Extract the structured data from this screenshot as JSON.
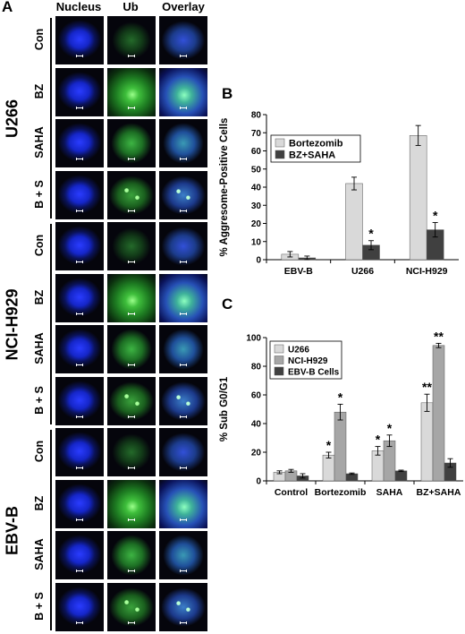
{
  "panel_a": {
    "letter": "A",
    "columns": [
      "Nucleus",
      "Ub",
      "Overlay"
    ],
    "groups": [
      {
        "name": "U266",
        "rows": [
          "Con",
          "BZ",
          "SAHA",
          "B + S"
        ]
      },
      {
        "name": "NCI-H929",
        "rows": [
          "Con",
          "BZ",
          "SAHA",
          "B + S"
        ]
      },
      {
        "name": "EBV-B",
        "rows": [
          "Con",
          "BZ",
          "SAHA",
          "B + S"
        ]
      }
    ]
  },
  "panel_b": {
    "letter": "B"
  },
  "panel_c": {
    "letter": "C"
  },
  "chart_data": [
    {
      "type": "bar",
      "categories": [
        "EBV-B",
        "U266",
        "NCI-H929"
      ],
      "ylabel": "% Aggresome-Positive Cells",
      "xlabel": "",
      "ylim": [
        0,
        80
      ],
      "yticks": [
        0,
        10,
        20,
        30,
        40,
        50,
        60,
        70,
        80
      ],
      "grid": false,
      "legend": "top-left",
      "series": [
        {
          "name": "Bortezomib",
          "values": [
            3,
            42,
            68.5
          ],
          "errors": [
            1.5,
            3.5,
            5.5
          ],
          "color": "#d9d9d9"
        },
        {
          "name": "BZ+SAHA",
          "values": [
            1,
            8,
            16.5
          ],
          "errors": [
            1,
            2.5,
            4
          ],
          "color": "#404040"
        }
      ],
      "annotations": [
        {
          "category": "U266",
          "series": "BZ+SAHA",
          "text": "*"
        },
        {
          "category": "NCI-H929",
          "series": "BZ+SAHA",
          "text": "*"
        }
      ]
    },
    {
      "type": "bar",
      "categories": [
        "Control",
        "Bortezomib",
        "SAHA",
        "BZ+SAHA"
      ],
      "ylabel": "% Sub G0/G1",
      "xlabel": "",
      "ylim": [
        0,
        100
      ],
      "yticks": [
        0,
        20,
        40,
        60,
        80,
        100
      ],
      "grid": false,
      "legend": "top-left",
      "series": [
        {
          "name": "U266",
          "values": [
            6,
            18,
            21,
            54.5
          ],
          "errors": [
            1,
            2,
            3,
            6
          ],
          "color": "#d9d9d9"
        },
        {
          "name": "NCI-H929",
          "values": [
            7,
            48,
            28,
            94.5
          ],
          "errors": [
            1,
            5.5,
            4,
            1.5
          ],
          "color": "#a6a6a6"
        },
        {
          "name": "EBV-B Cells",
          "values": [
            3.5,
            5,
            7,
            12.5
          ],
          "errors": [
            1.5,
            0.5,
            0.5,
            3
          ],
          "color": "#404040"
        }
      ],
      "annotations": [
        {
          "category": "Bortezomib",
          "series": "U266",
          "text": "*"
        },
        {
          "category": "Bortezomib",
          "series": "NCI-H929",
          "text": "*"
        },
        {
          "category": "SAHA",
          "series": "U266",
          "text": "*"
        },
        {
          "category": "SAHA",
          "series": "NCI-H929",
          "text": "*"
        },
        {
          "category": "BZ+SAHA",
          "series": "U266",
          "text": "**"
        },
        {
          "category": "BZ+SAHA",
          "series": "NCI-H929",
          "text": "**"
        }
      ]
    }
  ]
}
